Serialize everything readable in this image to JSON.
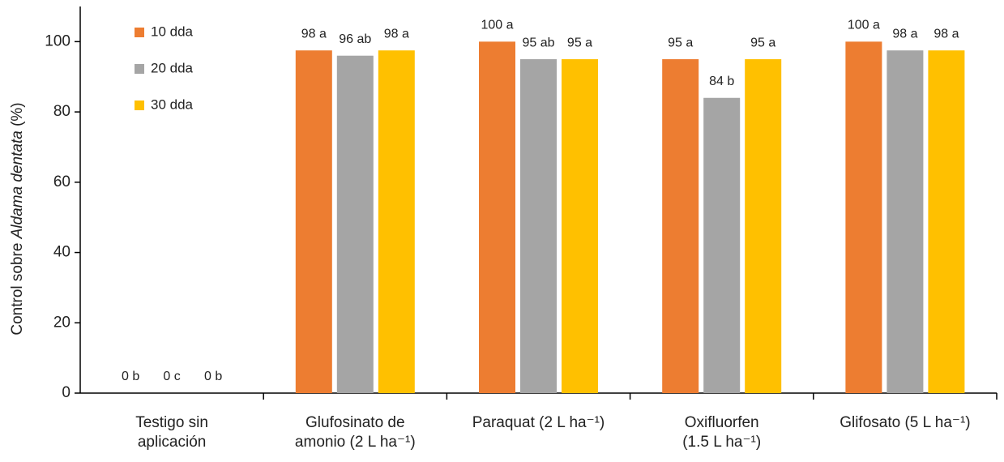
{
  "chart_data": {
    "type": "bar",
    "ylabel": [
      "Control sobre ",
      "Aldama dentata",
      " (%)"
    ],
    "categories": [
      "Testigo sin\naplicación",
      "Glufosinato de\namonio (2 L ha⁻¹)",
      "Paraquat (2 L ha⁻¹)",
      "Oxifluorfen\n(1.5 L ha⁻¹)",
      "Glifosato (5 L ha⁻¹)"
    ],
    "series": [
      {
        "name": "10 dda",
        "color": "#ed7d31",
        "values": [
          0,
          97.5,
          100,
          95,
          100
        ],
        "value_labels": [
          "0 b",
          "98 a",
          "100 a",
          "95 a",
          "100 a"
        ]
      },
      {
        "name": "20 dda",
        "color": "#a5a5a5",
        "values": [
          0,
          96,
          95,
          84,
          97.5
        ],
        "value_labels": [
          "0 c",
          "96 ab",
          "95 ab",
          "84 b",
          "98 a"
        ]
      },
      {
        "name": "30 dda",
        "color": "#ffc000",
        "values": [
          0,
          97.5,
          95,
          95,
          97.5
        ],
        "value_labels": [
          "0 b",
          "98 a",
          "95 a",
          "95 a",
          "98 a"
        ]
      }
    ],
    "ylim": [
      0,
      110
    ],
    "yticks": [
      0,
      20,
      40,
      60,
      80,
      100
    ],
    "grid": false,
    "legend": "top-left"
  }
}
